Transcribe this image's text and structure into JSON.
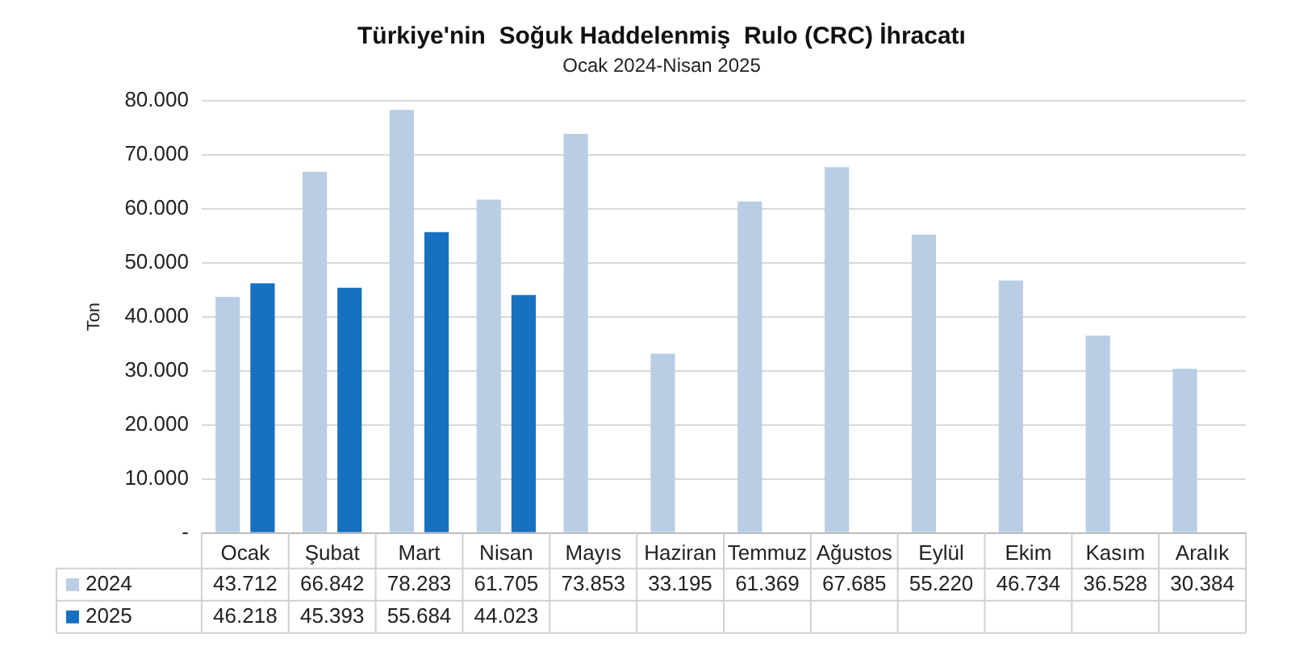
{
  "chart_data": {
    "type": "bar",
    "title": "Türkiye'nin  Soğuk Haddelenmiş  Rulo (CRC) İhracatı",
    "subtitle": "Ocak 2024-Nisan 2025",
    "ylabel": "Ton",
    "categories": [
      "Ocak",
      "Şubat",
      "Mart",
      "Nisan",
      "Mayıs",
      "Haziran",
      "Temmuz",
      "Ağustos",
      "Eylül",
      "Ekim",
      "Kasım",
      "Aralık"
    ],
    "series": [
      {
        "name": "2024",
        "color": "#b9cde5",
        "values": [
          43712,
          66842,
          78283,
          61705,
          73853,
          33195,
          61369,
          67685,
          55220,
          46734,
          36528,
          30384
        ],
        "value_labels": [
          "43.712",
          "66.842",
          "78.283",
          "61.705",
          "73.853",
          "33.195",
          "61.369",
          "67.685",
          "55.220",
          "46.734",
          "36.528",
          "30.384"
        ]
      },
      {
        "name": "2025",
        "color": "#1770c0",
        "values": [
          46218,
          45393,
          55684,
          44023,
          null,
          null,
          null,
          null,
          null,
          null,
          null,
          null
        ],
        "value_labels": [
          "46.218",
          "45.393",
          "55.684",
          "44.023",
          null,
          null,
          null,
          null,
          null,
          null,
          null,
          null
        ]
      }
    ],
    "ylim": [
      0,
      80000
    ],
    "yticks": [
      {
        "value": 0,
        "label": "-"
      },
      {
        "value": 10000,
        "label": "10.000"
      },
      {
        "value": 20000,
        "label": "20.000"
      },
      {
        "value": 30000,
        "label": "30.000"
      },
      {
        "value": 40000,
        "label": "40.000"
      },
      {
        "value": 50000,
        "label": "50.000"
      },
      {
        "value": 60000,
        "label": "60.000"
      },
      {
        "value": 70000,
        "label": "70.000"
      },
      {
        "value": 80000,
        "label": "80.000"
      }
    ],
    "grid": "y",
    "legend": "bottom"
  }
}
